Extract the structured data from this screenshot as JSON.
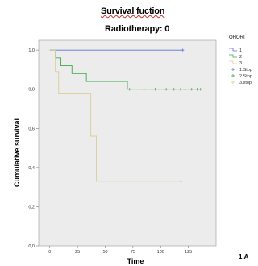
{
  "chart_data": {
    "type": "line",
    "title": "Survival fuction",
    "subtitle": "Radiotherapy: 0",
    "xlabel": "Time",
    "ylabel": "Cumulative survival",
    "xlim": [
      -10,
      150
    ],
    "ylim": [
      0,
      1.05
    ],
    "x_ticks": [
      0,
      25,
      50,
      75,
      100,
      125
    ],
    "y_ticks": [
      0.0,
      0.2,
      0.4,
      0.6,
      0.8,
      1.0
    ],
    "y_tick_labels": [
      "0,0",
      "0,2",
      "0,4",
      "0,6",
      "0,8",
      "1,0"
    ],
    "grid": false,
    "background": "#ececec",
    "legend": {
      "title": "OHORI",
      "placement": "right",
      "entries": [
        "1",
        "2",
        "3",
        "1.Stop",
        "2.Stop",
        "3.stop"
      ]
    },
    "series": [
      {
        "name": "1",
        "color": "#5b6fd6",
        "x": [
          0,
          120
        ],
        "y": [
          1.0,
          1.0
        ],
        "censored_x": [
          120
        ]
      },
      {
        "name": "2",
        "color": "#3da84a",
        "x": [
          0,
          5,
          10,
          20,
          33,
          70,
          136
        ],
        "y": [
          1.0,
          0.96,
          0.92,
          0.88,
          0.84,
          0.8,
          0.8
        ],
        "censored_x": [
          72,
          85,
          95,
          105,
          112,
          118,
          122,
          128,
          133,
          136
        ]
      },
      {
        "name": "3",
        "color": "#d8cf95",
        "x": [
          0,
          5,
          8,
          37,
          42,
          120
        ],
        "y": [
          1.0,
          0.89,
          0.78,
          0.56,
          0.33,
          0.33
        ],
        "censored_x": [
          118
        ]
      }
    ]
  },
  "figure_label": "1.A"
}
